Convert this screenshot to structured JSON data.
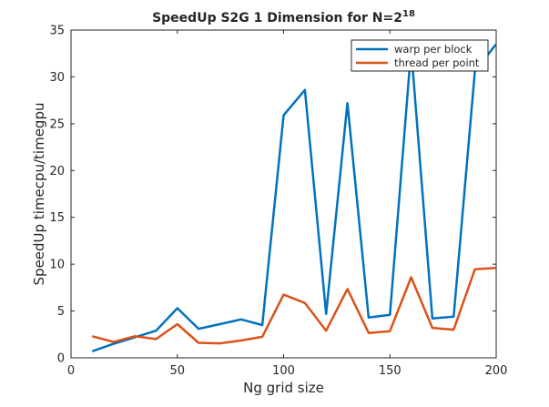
{
  "chart_data": {
    "type": "line",
    "title": "SpeedUp S2G 1 Dimension for N=2",
    "title_superscript": "18",
    "xlabel": "Ng grid size",
    "ylabel": "SpeedUp timecpu/timegpu",
    "xlim": [
      0,
      200
    ],
    "ylim": [
      0,
      35
    ],
    "xticks": [
      0,
      50,
      100,
      150,
      200
    ],
    "yticks": [
      0,
      5,
      10,
      15,
      20,
      25,
      30,
      35
    ],
    "grid": false,
    "legend_position": "top-right",
    "x": [
      10,
      20,
      30,
      40,
      50,
      60,
      70,
      80,
      90,
      100,
      110,
      120,
      130,
      140,
      150,
      160,
      170,
      180,
      190,
      200
    ],
    "series": [
      {
        "name": "warp per block",
        "color": "#0072BD",
        "values": [
          0.7,
          1.5,
          2.2,
          2.9,
          5.3,
          3.1,
          3.6,
          4.1,
          3.5,
          25.9,
          28.6,
          4.7,
          27.2,
          4.3,
          4.6,
          33.0,
          4.2,
          4.4,
          30.6,
          33.5
        ]
      },
      {
        "name": "thread per point",
        "color": "#D95319",
        "values": [
          2.3,
          1.7,
          2.3,
          2.0,
          3.6,
          1.6,
          1.55,
          1.85,
          2.25,
          6.75,
          5.85,
          2.9,
          7.35,
          2.65,
          2.85,
          8.6,
          3.2,
          3.0,
          9.45,
          9.6
        ]
      }
    ]
  }
}
